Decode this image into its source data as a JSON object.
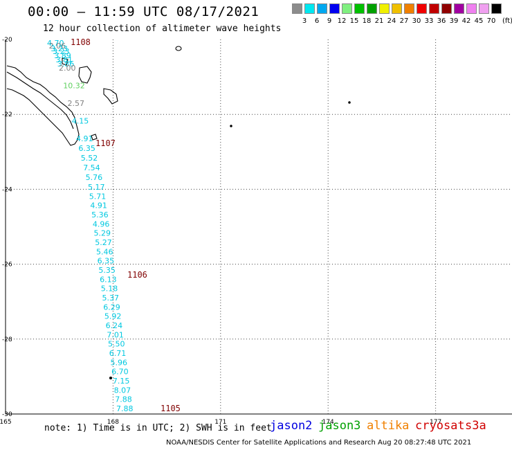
{
  "header": {
    "title": "00:00 — 11:59 UTC 08/17/2021",
    "subtitle": "12 hour collection of altimeter wave heights"
  },
  "legend": {
    "colors": [
      "#8c8c8c",
      "#00e8f0",
      "#00a8f0",
      "#0000f0",
      "#80f080",
      "#00c000",
      "#00a000",
      "#f0f000",
      "#f0c000",
      "#f08000",
      "#f00000",
      "#c00000",
      "#900000",
      "#a000a0",
      "#f080f0",
      "#f0a0f0",
      "#000000"
    ],
    "labels": [
      "3",
      "6",
      "9",
      "12",
      "15",
      "18",
      "21",
      "24",
      "27",
      "30",
      "33",
      "36",
      "39",
      "42",
      "45",
      "70"
    ],
    "unit": "(ft)"
  },
  "map": {
    "lon_ticks": [
      "165",
      "168",
      "171",
      "174",
      "177"
    ],
    "lat_ticks": [
      "-20",
      "-22",
      "-24",
      "-26",
      "-28",
      "-30"
    ],
    "lon_range": [
      165,
      180
    ],
    "lat_range": [
      -20,
      -30
    ],
    "grid": true
  },
  "footer": {
    "note": "note: 1) Time is in UTC; 2) SWH is in feet",
    "satellites": [
      {
        "name": "jason2",
        "color": "#0000e0"
      },
      {
        "name": "jason3",
        "color": "#00a000"
      },
      {
        "name": "altika",
        "color": "#f08000"
      },
      {
        "name": "cryosat",
        "color": "#d00000"
      },
      {
        "name": "s3a",
        "color": "#d00000"
      }
    ],
    "credit": "NOAA/NESDIS Center for Satellite Applications and Research    Aug 20 08:27:48 UTC 2021"
  },
  "pass_labels": [
    {
      "text": "1108",
      "color": "#800000"
    },
    {
      "text": "1107",
      "color": "#800000"
    },
    {
      "text": "1106",
      "color": "#800000"
    },
    {
      "text": "1105",
      "color": "#800000"
    }
  ],
  "wave_heights": [
    {
      "v": "4.70",
      "c": "#00c8e0"
    },
    {
      "v": "2.06",
      "c": "#808080"
    },
    {
      "v": "3.23",
      "c": "#00c8e0"
    },
    {
      "v": "3.23",
      "c": "#00c8e0"
    },
    {
      "v": "3.89",
      "c": "#00c8e0"
    },
    {
      "v": "3.81",
      "c": "#00c8e0"
    },
    {
      "v": "3.86",
      "c": "#00c8e0"
    },
    {
      "v": "2.00",
      "c": "#808080"
    },
    {
      "v": "10.32",
      "c": "#60d060"
    },
    {
      "v": "2.57",
      "c": "#808080"
    },
    {
      "v": "4.15",
      "c": "#00c8e0"
    },
    {
      "v": "4.91",
      "c": "#00c8e0"
    },
    {
      "v": "6.35",
      "c": "#00c8e0"
    },
    {
      "v": "5.52",
      "c": "#00c8e0"
    },
    {
      "v": "7.54",
      "c": "#00c8e0"
    },
    {
      "v": "5.76",
      "c": "#00c8e0"
    },
    {
      "v": "5.17",
      "c": "#00c8e0"
    },
    {
      "v": "5.71",
      "c": "#00c8e0"
    },
    {
      "v": "4.91",
      "c": "#00c8e0"
    },
    {
      "v": "5.36",
      "c": "#00c8e0"
    },
    {
      "v": "4.96",
      "c": "#00c8e0"
    },
    {
      "v": "5.29",
      "c": "#00c8e0"
    },
    {
      "v": "5.27",
      "c": "#00c8e0"
    },
    {
      "v": "5.46",
      "c": "#00c8e0"
    },
    {
      "v": "6.35",
      "c": "#00c8e0"
    },
    {
      "v": "5.35",
      "c": "#00c8e0"
    },
    {
      "v": "6.13",
      "c": "#00c8e0"
    },
    {
      "v": "5.18",
      "c": "#00c8e0"
    },
    {
      "v": "5.37",
      "c": "#00c8e0"
    },
    {
      "v": "6.29",
      "c": "#00c8e0"
    },
    {
      "v": "5.92",
      "c": "#00c8e0"
    },
    {
      "v": "6.24",
      "c": "#00c8e0"
    },
    {
      "v": "7.01",
      "c": "#00c8e0"
    },
    {
      "v": "5.50",
      "c": "#00c8e0"
    },
    {
      "v": "6.71",
      "c": "#00c8e0"
    },
    {
      "v": "5.96",
      "c": "#00c8e0"
    },
    {
      "v": "6.70",
      "c": "#00c8e0"
    },
    {
      "v": "7.15",
      "c": "#00c8e0"
    },
    {
      "v": "8.07",
      "c": "#00c8e0"
    },
    {
      "v": "7.88",
      "c": "#00c8e0"
    },
    {
      "v": "7.88",
      "c": "#00c8e0"
    }
  ]
}
